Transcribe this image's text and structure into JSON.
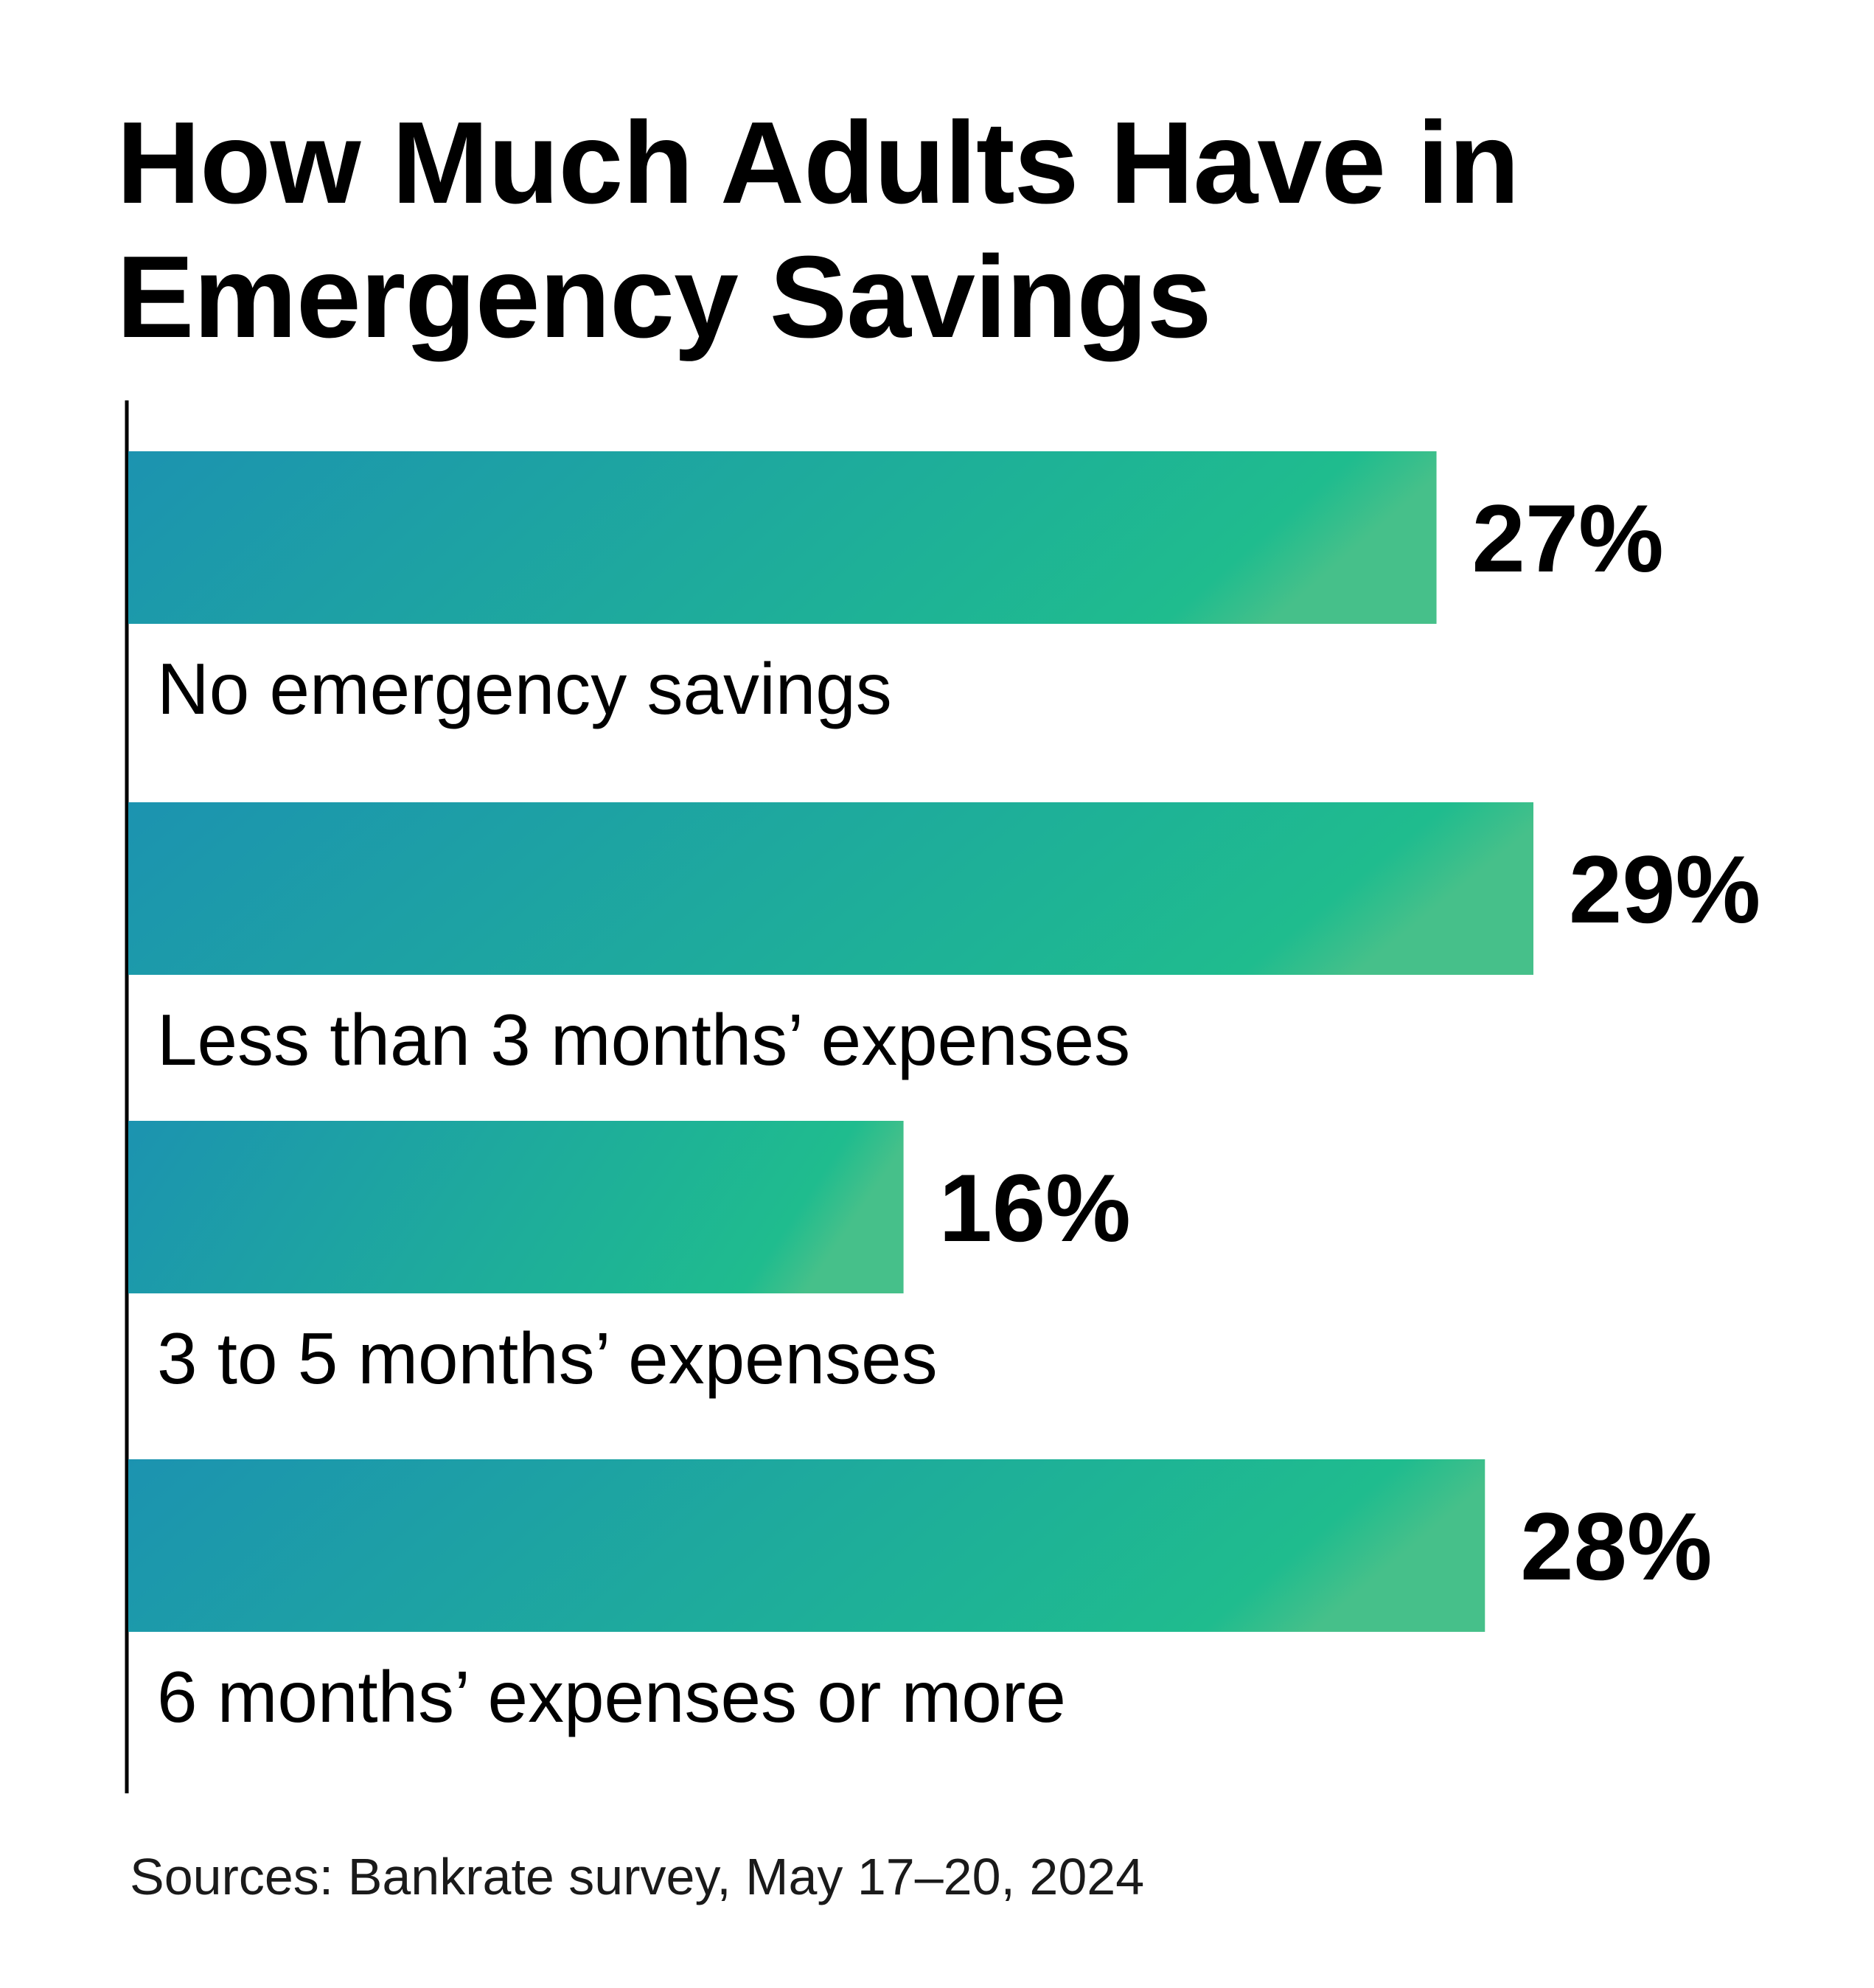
{
  "chart_data": {
    "type": "bar",
    "orientation": "horizontal",
    "title": "How Much Adults Have in Emergency Savings",
    "categories": [
      "No emergency savings",
      "Less than 3 months’ expenses",
      "3 to 5 months’ expenses",
      "6 months’ expenses or more"
    ],
    "values": [
      27,
      29,
      16,
      28
    ],
    "value_labels": [
      "27%",
      "29%",
      "16%",
      "28%"
    ],
    "xlim": [
      0,
      29
    ],
    "grid": false,
    "legend": "none",
    "colors": {
      "gradient_start": "#1C93B0",
      "gradient_end": "#1FBC8E",
      "gradient_highlight": "#46C08A",
      "axis": "#000000"
    }
  },
  "source": "Sources: Bankrate survey, May 17–20, 2024"
}
